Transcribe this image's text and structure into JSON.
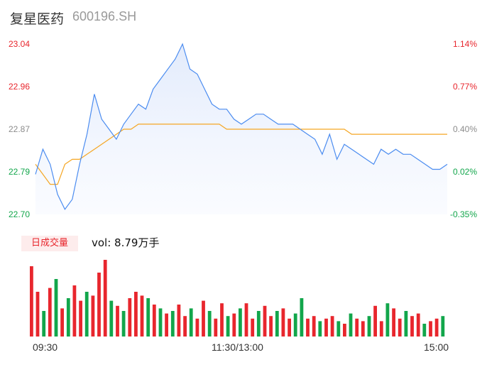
{
  "header": {
    "name": "复星医药",
    "code": "600196.SH"
  },
  "volume_panel": {
    "badge": "日成交量",
    "vol_label": "vol: 8.79万手"
  },
  "colors": {
    "up": "#e8262d",
    "down": "#12a64b",
    "price_line": "#4b8cf0",
    "avg_line": "#f5a623",
    "flat": "#8c8c8c"
  },
  "chart_data": {
    "type": "line",
    "ylim": [
      22.7,
      23.04
    ],
    "y_ticks_left": [
      "23.04",
      "22.96",
      "22.87",
      "22.79",
      "22.70"
    ],
    "y_ticks_right": [
      "1.14%",
      "0.77%",
      "0.40%",
      "0.02%",
      "-0.35%"
    ],
    "x_ticks": [
      "09:30",
      "11:30/13:00",
      "15:00"
    ],
    "series": [
      {
        "values": [
          22.78,
          22.83,
          22.8,
          22.74,
          22.71,
          22.73,
          22.8,
          22.86,
          22.94,
          22.89,
          22.87,
          22.85,
          22.88,
          22.9,
          22.92,
          22.91,
          22.95,
          22.97,
          22.99,
          23.01,
          23.04,
          22.99,
          22.98,
          22.95,
          22.92,
          22.91,
          22.91,
          22.89,
          22.88,
          22.89,
          22.9,
          22.9,
          22.89,
          22.88,
          22.88,
          22.88,
          22.87,
          22.86,
          22.85,
          22.82,
          22.86,
          22.81,
          22.84,
          22.83,
          22.82,
          22.81,
          22.8,
          22.83,
          22.82,
          22.83,
          22.82,
          22.82,
          22.81,
          22.8,
          22.79,
          22.79,
          22.8
        ]
      },
      {
        "values": [
          22.8,
          22.78,
          22.76,
          22.76,
          22.8,
          22.81,
          22.81,
          22.82,
          22.83,
          22.84,
          22.85,
          22.86,
          22.87,
          22.87,
          22.88,
          22.88,
          22.88,
          22.88,
          22.88,
          22.88,
          22.88,
          22.88,
          22.88,
          22.88,
          22.88,
          22.88,
          22.87,
          22.87,
          22.87,
          22.87,
          22.87,
          22.87,
          22.87,
          22.87,
          22.87,
          22.87,
          22.87,
          22.87,
          22.87,
          22.87,
          22.87,
          22.87,
          22.87,
          22.86,
          22.86,
          22.86,
          22.86,
          22.86,
          22.86,
          22.86,
          22.86,
          22.86,
          22.86,
          22.86,
          22.86,
          22.86,
          22.86
        ]
      }
    ],
    "volume": [
      55,
      35,
      20,
      38,
      45,
      22,
      30,
      40,
      28,
      35,
      32,
      50,
      60,
      28,
      24,
      20,
      30,
      35,
      32,
      30,
      25,
      22,
      18,
      20,
      25,
      16,
      22,
      14,
      28,
      20,
      14,
      26,
      16,
      18,
      22,
      26,
      14,
      20,
      24,
      16,
      20,
      22,
      14,
      18,
      30,
      14,
      16,
      12,
      14,
      16,
      12,
      10,
      18,
      14,
      12,
      16,
      24,
      12,
      26,
      22,
      14,
      20,
      16,
      18,
      10,
      12,
      14,
      16
    ],
    "volume_dir": [
      "up",
      "up",
      "down",
      "up",
      "down",
      "up",
      "down",
      "up",
      "up",
      "down",
      "up",
      "up",
      "up",
      "down",
      "up",
      "down",
      "up",
      "up",
      "up",
      "down",
      "up",
      "down",
      "up",
      "down",
      "up",
      "up",
      "down",
      "up",
      "up",
      "down",
      "up",
      "up",
      "down",
      "up",
      "down",
      "up",
      "up",
      "down",
      "up",
      "up",
      "down",
      "up",
      "up",
      "down",
      "down",
      "up",
      "up",
      "down",
      "up",
      "up",
      "down",
      "up",
      "down",
      "up",
      "up",
      "down",
      "up",
      "up",
      "down",
      "up",
      "up",
      "down",
      "up",
      "up",
      "down",
      "up",
      "up",
      "down"
    ]
  }
}
